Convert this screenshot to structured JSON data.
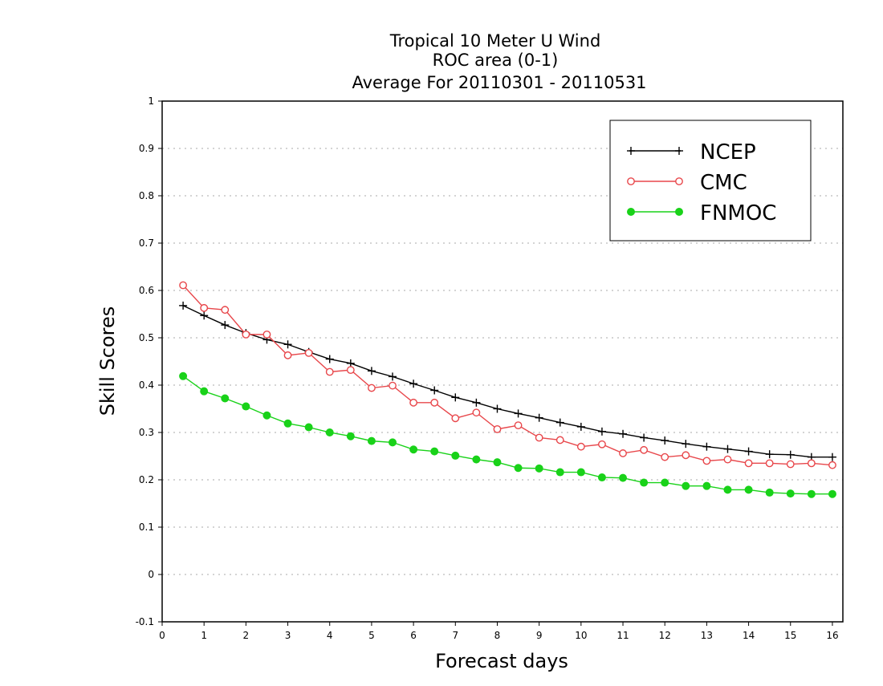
{
  "chart_data": {
    "type": "line",
    "title": [
      "Tropical 10 Meter U Wind",
      "ROC area (0-1)",
      "Average For 20110301 - 20110531"
    ],
    "xlabel": "Forecast days",
    "ylabel": "Skill Scores",
    "xlim": [
      0,
      16.25
    ],
    "ylim": [
      -0.1,
      1
    ],
    "x_ticks": [
      0,
      1,
      2,
      3,
      4,
      5,
      6,
      7,
      8,
      9,
      10,
      11,
      12,
      13,
      14,
      15,
      16
    ],
    "y_ticks": [
      -0.1,
      0,
      0.1,
      0.2,
      0.3,
      0.4,
      0.5,
      0.6,
      0.7,
      0.8,
      0.9,
      1
    ],
    "y_tick_labels": [
      "-0.1",
      "0",
      "0.1",
      "0.2",
      "0.3",
      "0.4",
      "0.5",
      "0.6",
      "0.7",
      "0.8",
      "0.9",
      "1"
    ],
    "grid": "horizontal dotted",
    "legend_position": "top-right",
    "x": [
      0.5,
      1,
      1.5,
      2,
      2.5,
      3,
      3.5,
      4,
      4.5,
      5,
      5.5,
      6,
      6.5,
      7,
      7.5,
      8,
      8.5,
      9,
      9.5,
      10,
      10.5,
      11,
      11.5,
      12,
      12.5,
      13,
      13.5,
      14,
      14.5,
      15,
      15.5,
      16
    ],
    "series": [
      {
        "name": "NCEP",
        "color": "#000000",
        "marker": "plus",
        "values": [
          0.568,
          0.547,
          0.527,
          0.51,
          0.496,
          0.486,
          0.47,
          0.455,
          0.446,
          0.43,
          0.418,
          0.403,
          0.389,
          0.374,
          0.363,
          0.35,
          0.34,
          0.331,
          0.321,
          0.312,
          0.302,
          0.297,
          0.289,
          0.283,
          0.276,
          0.27,
          0.265,
          0.26,
          0.254,
          0.253,
          0.248,
          0.248
        ]
      },
      {
        "name": "CMC",
        "color": "#e8474b",
        "marker": "open-circle",
        "values": [
          0.611,
          0.563,
          0.559,
          0.507,
          0.507,
          0.463,
          0.468,
          0.428,
          0.432,
          0.394,
          0.399,
          0.363,
          0.363,
          0.33,
          0.342,
          0.307,
          0.315,
          0.289,
          0.284,
          0.27,
          0.275,
          0.256,
          0.263,
          0.248,
          0.252,
          0.24,
          0.243,
          0.235,
          0.235,
          0.233,
          0.235,
          0.231
        ]
      },
      {
        "name": "FNMOC",
        "color": "#19d219",
        "marker": "filled-circle",
        "values": [
          0.419,
          0.387,
          0.372,
          0.355,
          0.336,
          0.319,
          0.311,
          0.3,
          0.292,
          0.282,
          0.279,
          0.264,
          0.26,
          0.251,
          0.243,
          0.237,
          0.225,
          0.224,
          0.216,
          0.216,
          0.205,
          0.204,
          0.194,
          0.194,
          0.187,
          0.187,
          0.179,
          0.179,
          0.173,
          0.171,
          0.17,
          0.17
        ]
      }
    ]
  }
}
